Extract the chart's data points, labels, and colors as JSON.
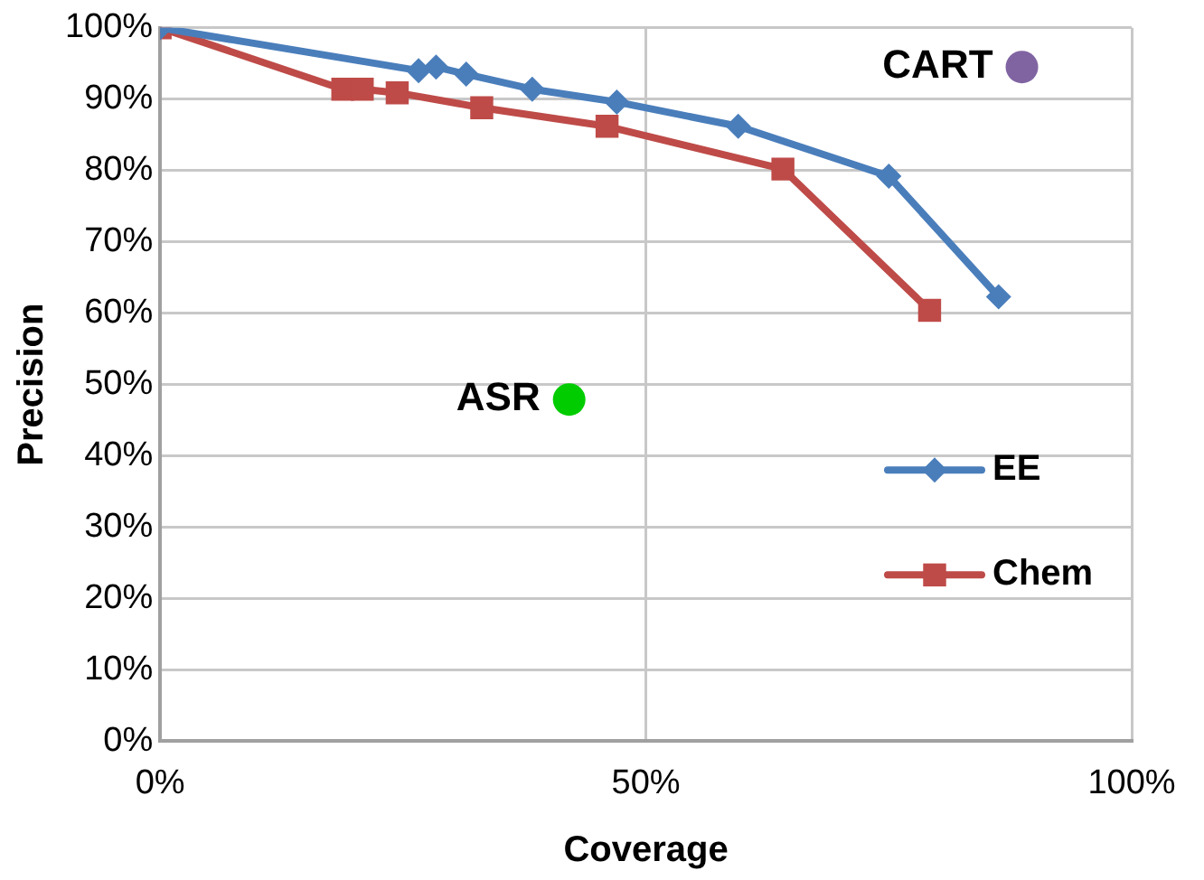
{
  "chart_data": {
    "type": "line",
    "xlabel": "Coverage",
    "ylabel": "Precision",
    "xlim": [
      0,
      100
    ],
    "xticks": [
      {
        "value": 0,
        "label": "0%"
      },
      {
        "value": 50,
        "label": "50%"
      },
      {
        "value": 100,
        "label": "100%"
      }
    ],
    "ylim": [
      0,
      100
    ],
    "yticks": [
      {
        "value": 0,
        "label": "0%"
      },
      {
        "value": 10,
        "label": "10%"
      },
      {
        "value": 20,
        "label": "20%"
      },
      {
        "value": 30,
        "label": "30%"
      },
      {
        "value": 40,
        "label": "40%"
      },
      {
        "value": 50,
        "label": "50%"
      },
      {
        "value": 60,
        "label": "60%"
      },
      {
        "value": 70,
        "label": "70%"
      },
      {
        "value": 80,
        "label": "80%"
      },
      {
        "value": 90,
        "label": "90%"
      },
      {
        "value": 100,
        "label": "100%"
      }
    ],
    "grid": true,
    "legend": "right",
    "series": [
      {
        "name": "EE",
        "color": "#4a7ebb",
        "marker": "diamond",
        "x": [
          0,
          26.6,
          28.4,
          31.5,
          38.3,
          47,
          59.5,
          75,
          86.3
        ],
        "values": [
          100,
          94,
          94.5,
          93.5,
          91.4,
          89.6,
          86.2,
          79.2,
          62.3
        ]
      },
      {
        "name": "Chem",
        "color": "#be4b48",
        "marker": "square",
        "x": [
          0,
          18.8,
          20.8,
          24.4,
          33.1,
          46,
          64.1,
          79.2
        ],
        "values": [
          100,
          91.4,
          91.4,
          90.9,
          88.8,
          86.2,
          80.2,
          60.4
        ]
      },
      {
        "color": "#00cc00",
        "type": "scatter",
        "marker": "circle",
        "x": [
          42.1
        ],
        "values": [
          47.9
        ]
      },
      {
        "color": "#8064a2",
        "type": "scatter",
        "marker": "circle",
        "x": [
          88.7
        ],
        "values": [
          94.5
        ]
      }
    ],
    "annotations": [
      {
        "text": "ASR",
        "x": 42.1,
        "y": 47.9
      },
      {
        "text": "CART",
        "x": 88.7,
        "y": 94.5
      }
    ]
  }
}
